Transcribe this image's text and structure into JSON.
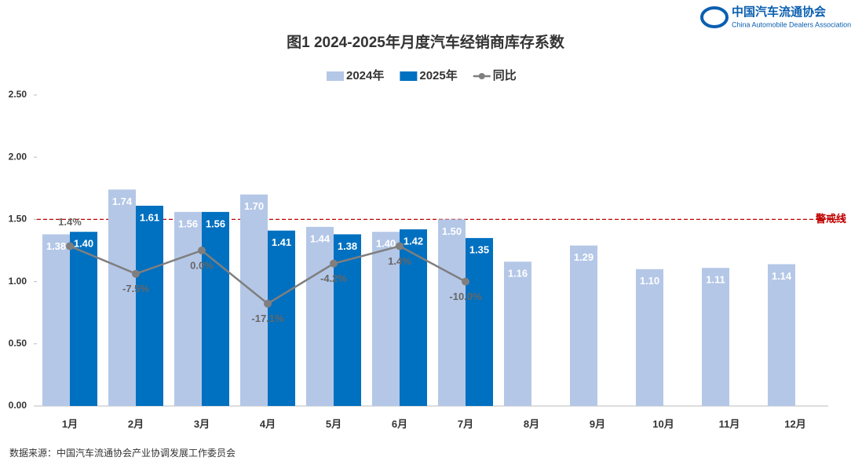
{
  "brand": {
    "name": "中国汽车流通协会",
    "name_en": "China Automobile Dealers Association"
  },
  "source": "数据来源：中国汽车流通协会产业协调发展工作委员会",
  "chart_data": {
    "type": "bar",
    "title": "图1  2024-2025年月度汽车经销商库存系数",
    "categories": [
      "1月",
      "2月",
      "3月",
      "4月",
      "5月",
      "6月",
      "7月",
      "8月",
      "9月",
      "10月",
      "11月",
      "12月"
    ],
    "series": [
      {
        "name": "2024年",
        "color": "#b4c7e7",
        "values": [
          1.38,
          1.74,
          1.56,
          1.7,
          1.44,
          1.4,
          1.5,
          1.16,
          1.29,
          1.1,
          1.11,
          1.14
        ],
        "value_labels": [
          "1.38",
          "1.74",
          "1.56",
          "1.70",
          "1.44",
          "1.40",
          "1.50",
          "1.16",
          "1.29",
          "1.10",
          "1.11",
          "1.14"
        ]
      },
      {
        "name": "2025年",
        "color": "#0070c0",
        "values": [
          1.4,
          1.61,
          1.56,
          1.41,
          1.38,
          1.42,
          1.35,
          null,
          null,
          null,
          null,
          null
        ],
        "value_labels": [
          "1.40",
          "1.61",
          "1.56",
          "1.41",
          "1.38",
          "1.42",
          "1.35",
          null,
          null,
          null,
          null,
          null
        ]
      },
      {
        "name": "同比",
        "type": "line",
        "axis": "y2",
        "color": "#7f7f7f",
        "values": [
          1.4,
          -7.5,
          0.0,
          -17.1,
          -4.2,
          1.4,
          -10.0,
          null,
          null,
          null,
          null,
          null
        ],
        "value_labels": [
          "1.4%",
          "-7.5%",
          "0.0%",
          "-17.1%",
          "-4.2%",
          "1.4%",
          "-10.0%",
          null,
          null,
          null,
          null,
          null
        ]
      }
    ],
    "ylim": [
      0,
      2.5
    ],
    "yticks": [
      {
        "value": 0,
        "label": "0.00"
      },
      {
        "value": 0.5,
        "label": "0.50"
      },
      {
        "value": 1,
        "label": "1.00"
      },
      {
        "value": 1.5,
        "label": "1.50"
      },
      {
        "value": 2,
        "label": "2.00"
      },
      {
        "value": 2.5,
        "label": "2.50"
      }
    ],
    "y2lim": [
      -50,
      50
    ],
    "threshold": {
      "value": 1.5,
      "label": "警戒线",
      "color": "#c00000"
    },
    "legend": "top"
  }
}
